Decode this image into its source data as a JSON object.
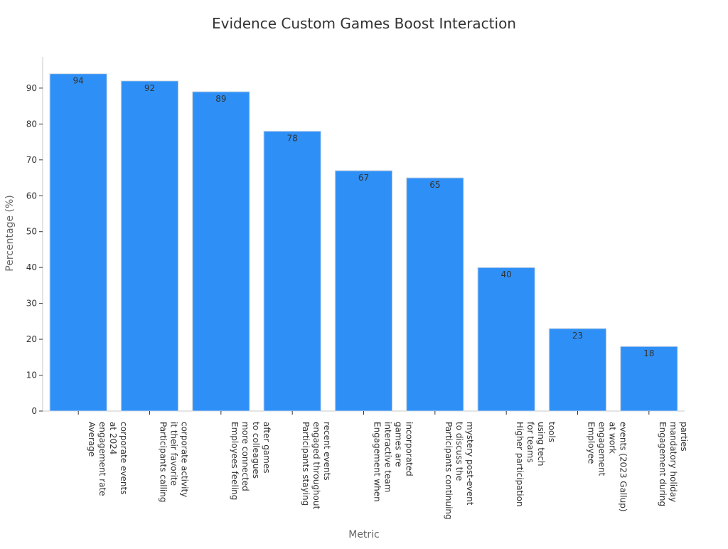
{
  "chart_data": {
    "type": "bar",
    "title": "Evidence Custom Games Boost Interaction",
    "xlabel": "Metric",
    "ylabel": "Percentage (%)",
    "ylim": [
      0,
      98.7
    ],
    "yticks": [
      0,
      10,
      20,
      30,
      40,
      50,
      60,
      70,
      80,
      90
    ],
    "grid": false,
    "categories": [
      [
        "Average",
        "engagement rate",
        "at 2024",
        "corporate events"
      ],
      [
        "Participants calling",
        "it their favorite",
        "corporate activity"
      ],
      [
        "Employees feeling",
        "more connected",
        "to colleagues",
        "after games"
      ],
      [
        "Participants staying",
        "engaged throughout",
        "recent events"
      ],
      [
        "Engagement when",
        "interactive team",
        "games are",
        "incorporated"
      ],
      [
        "Participants continuing",
        "to discuss the",
        "mystery post-event"
      ],
      [
        "Higher participation",
        "for teams",
        "using tech",
        "tools"
      ],
      [
        "Employee",
        "engagement",
        "at work",
        "events (2023 Gallup)"
      ],
      [
        "Engagement during",
        "mandatory holiday",
        "parties"
      ]
    ],
    "values": [
      94,
      92,
      89,
      78,
      67,
      65,
      40,
      23,
      18
    ],
    "data_labels": [
      "94",
      "92",
      "89",
      "78",
      "67",
      "65",
      "40",
      "23",
      "18"
    ],
    "colors": {
      "bar": "#2e90f7",
      "bar_edge": "#cfd8e3",
      "axis": "#c8c8c8",
      "text": "#333333",
      "label": "#666666"
    }
  }
}
